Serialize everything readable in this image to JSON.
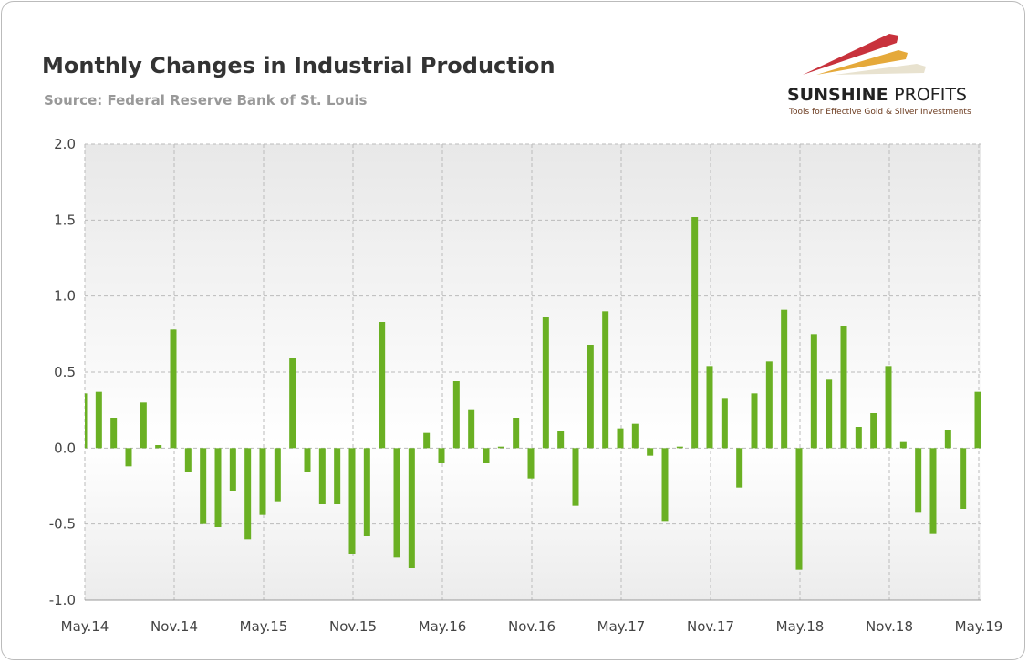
{
  "chart_data": {
    "type": "bar",
    "title": "Monthly Changes in Industrial Production",
    "subtitle": "Source: Federal Reserve Bank of St. Louis",
    "xlabel": "",
    "ylabel": "",
    "ylim": [
      -1.0,
      2.0
    ],
    "yticks": [
      "2.0",
      "1.5",
      "1.0",
      "0.5",
      "0.0",
      "-0.5",
      "-1.0"
    ],
    "ytick_values": [
      2.0,
      1.5,
      1.0,
      0.5,
      0.0,
      -0.5,
      -1.0
    ],
    "xticks": [
      "May.14",
      "Nov.14",
      "May.15",
      "Nov.15",
      "May.16",
      "Nov.16",
      "May.17",
      "Nov.17",
      "May.18",
      "Nov.18",
      "May.19"
    ],
    "grid": true,
    "bar_color": "#6ab023",
    "values": [
      0.36,
      0.37,
      0.2,
      -0.12,
      0.3,
      0.02,
      0.78,
      -0.16,
      -0.5,
      -0.52,
      -0.28,
      -0.6,
      -0.44,
      -0.35,
      0.59,
      -0.16,
      -0.37,
      -0.37,
      -0.7,
      -0.58,
      0.83,
      -0.72,
      -0.79,
      0.1,
      -0.1,
      0.44,
      0.25,
      -0.1,
      0.01,
      0.2,
      -0.2,
      0.86,
      0.11,
      -0.38,
      0.68,
      0.9,
      0.13,
      0.16,
      -0.05,
      -0.48,
      0.01,
      1.52,
      0.54,
      0.33,
      -0.26,
      0.36,
      0.57,
      0.91,
      -0.8,
      0.75,
      0.45,
      0.8,
      0.14,
      0.23,
      0.54,
      0.04,
      -0.42,
      -0.56,
      0.12,
      -0.4,
      0.37
    ]
  },
  "logo": {
    "name": "SUNSHINE PROFITS",
    "tagline": "Tools for Effective Gold & Silver Investments"
  }
}
